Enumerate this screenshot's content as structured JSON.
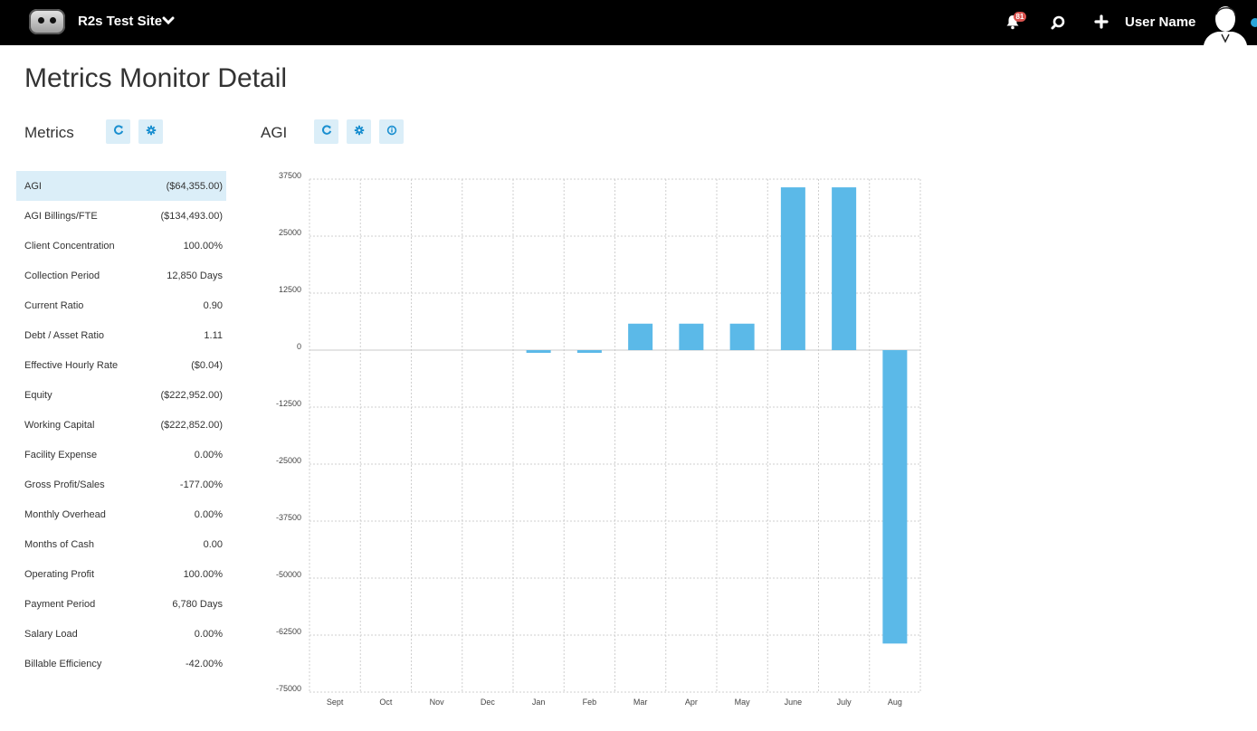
{
  "header": {
    "site_title": "R2s Test Site",
    "notification_count": "81",
    "user_name": "User Name"
  },
  "page": {
    "title": "Metrics Monitor Detail"
  },
  "metrics_panel": {
    "title": "Metrics",
    "items": [
      {
        "name": "AGI",
        "value": "($64,355.00)",
        "selected": true
      },
      {
        "name": "AGI Billings/FTE",
        "value": "($134,493.00)"
      },
      {
        "name": "Client Concentration",
        "value": "100.00%"
      },
      {
        "name": "Collection Period",
        "value": "12,850 Days"
      },
      {
        "name": "Current Ratio",
        "value": "0.90"
      },
      {
        "name": "Debt / Asset Ratio",
        "value": "1.11"
      },
      {
        "name": "Effective Hourly Rate",
        "value": "($0.04)"
      },
      {
        "name": "Equity",
        "value": "($222,952.00)"
      },
      {
        "name": "Working Capital",
        "value": "($222,852.00)"
      },
      {
        "name": "Facility Expense",
        "value": "0.00%"
      },
      {
        "name": "Gross Profit/Sales",
        "value": "-177.00%"
      },
      {
        "name": "Monthly Overhead",
        "value": "0.00%"
      },
      {
        "name": "Months of Cash",
        "value": "0.00"
      },
      {
        "name": "Operating Profit",
        "value": "100.00%"
      },
      {
        "name": "Payment Period",
        "value": "6,780 Days"
      },
      {
        "name": "Salary Load",
        "value": "0.00%"
      },
      {
        "name": "Billable Efficiency",
        "value": "-42.00%"
      }
    ]
  },
  "chart_panel": {
    "title": "AGI"
  },
  "colors": {
    "bar": "#5bb9e8",
    "selected_row": "#dbeef8",
    "icon": "#1a8fd0",
    "badge": "#d9534f"
  },
  "chart_data": {
    "type": "bar",
    "categories": [
      "Sept",
      "Oct",
      "Nov",
      "Dec",
      "Jan",
      "Feb",
      "Mar",
      "Apr",
      "May",
      "June",
      "July",
      "Aug"
    ],
    "values": [
      0,
      0,
      0,
      0,
      -600,
      -600,
      5800,
      5800,
      5800,
      35700,
      35700,
      -64355
    ],
    "y_ticks": [
      37500,
      25000,
      12500,
      0,
      -12500,
      -25000,
      -37500,
      -50000,
      -62500,
      -75000
    ],
    "ylim": [
      -75000,
      37500
    ],
    "grid": true
  }
}
